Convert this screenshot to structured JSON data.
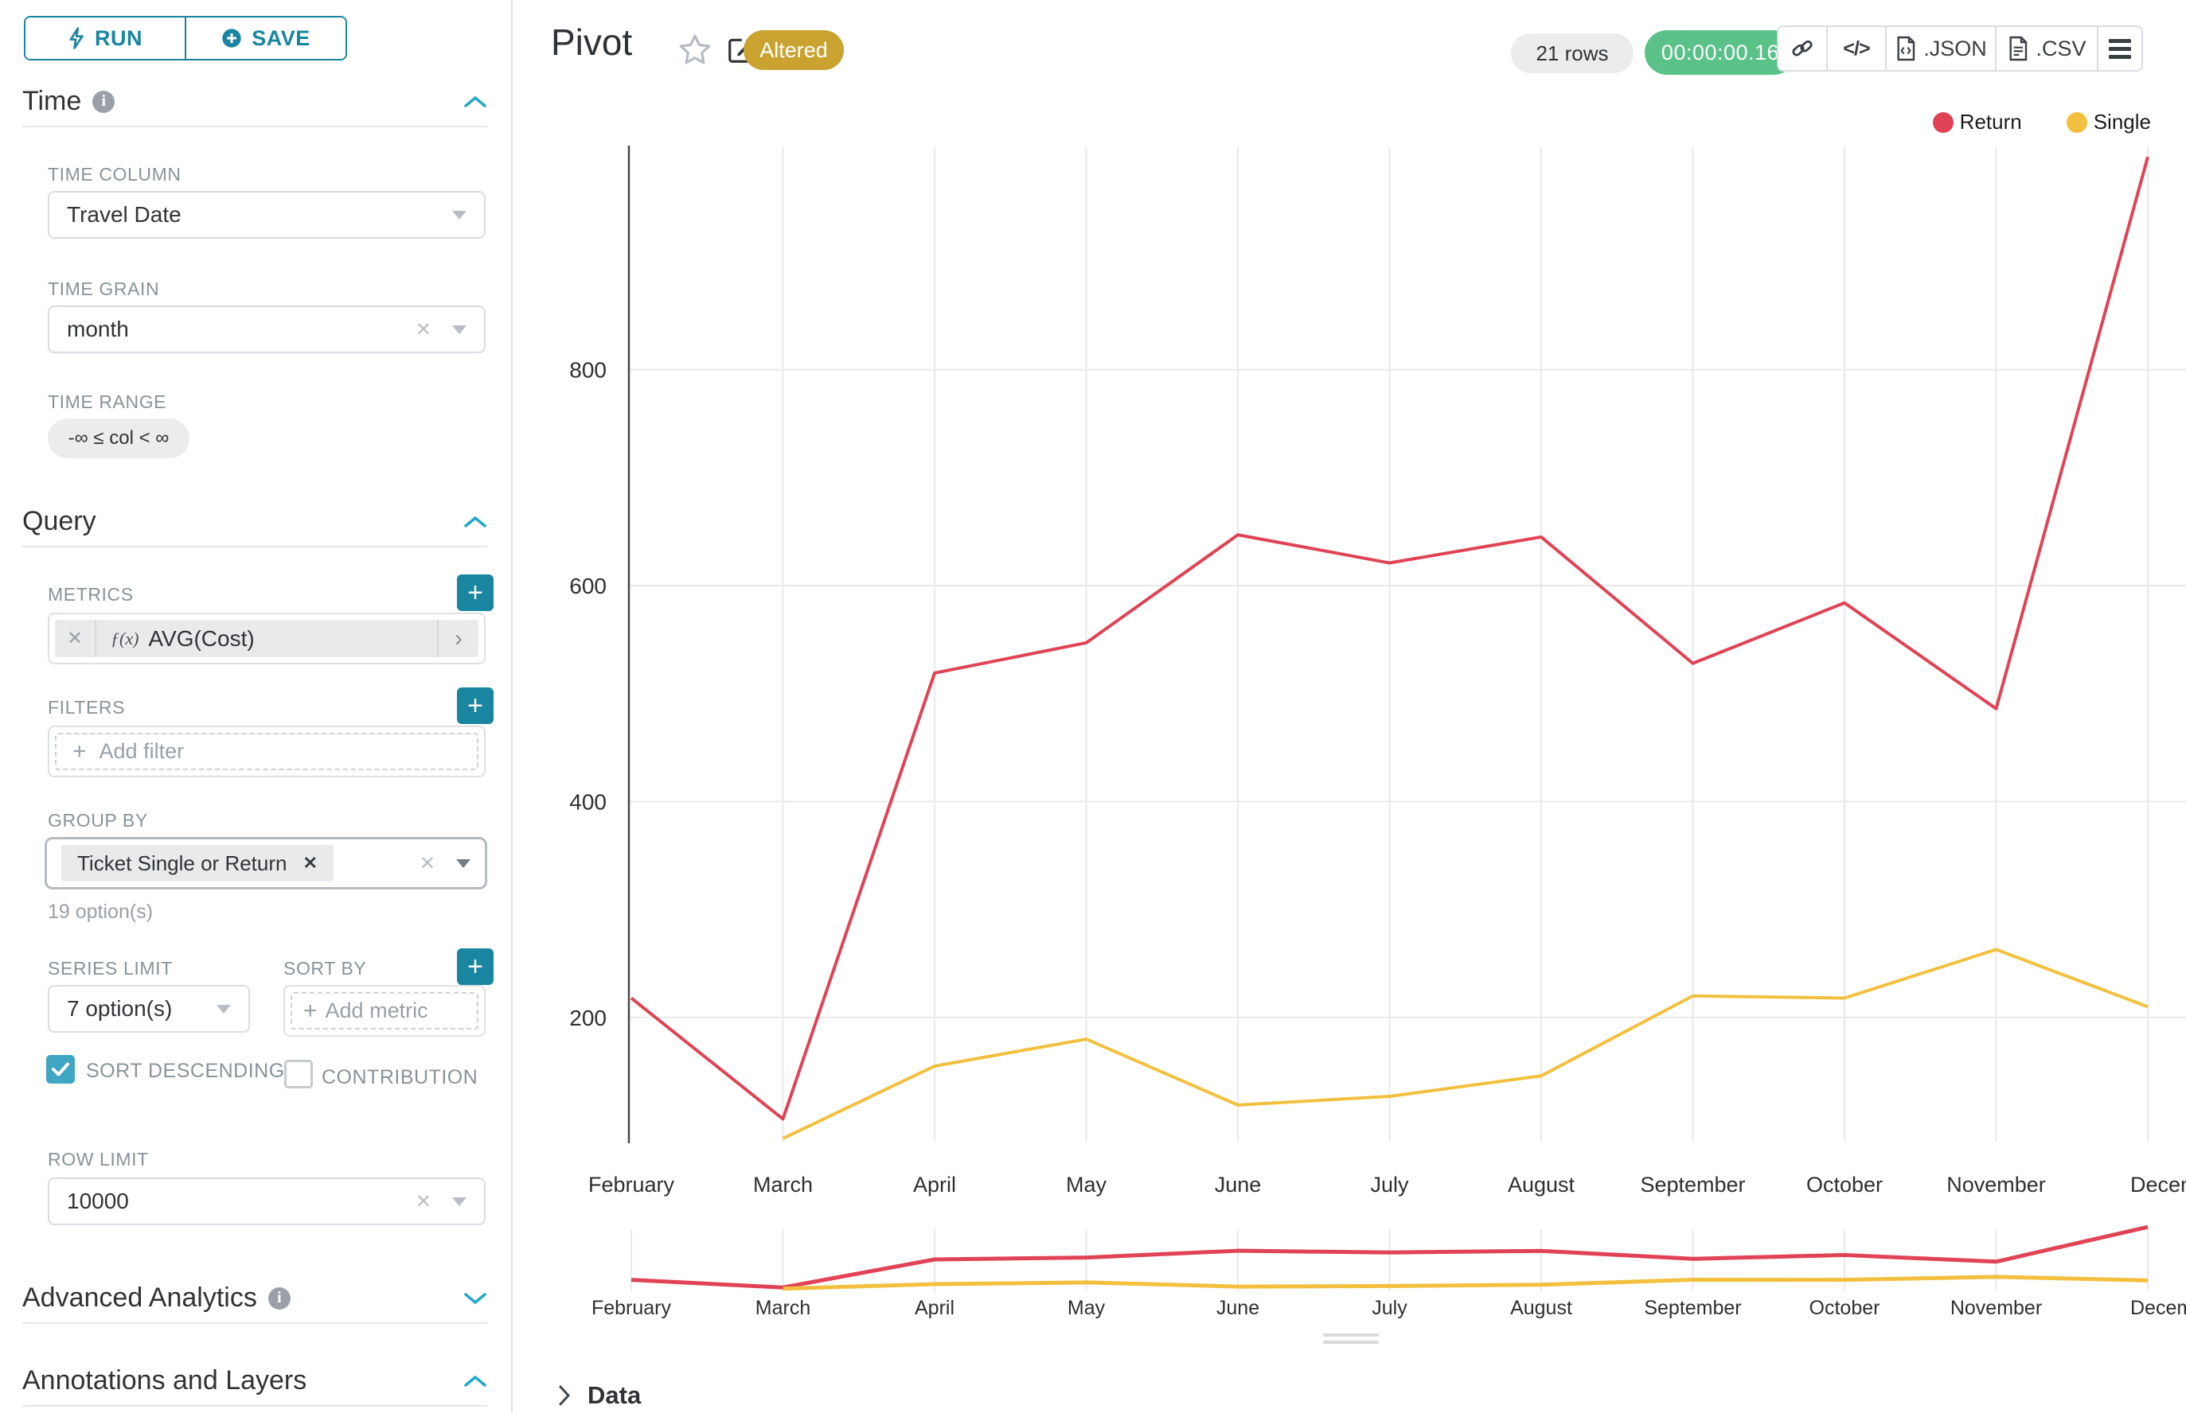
{
  "toolbar": {
    "run_label": "RUN",
    "save_label": "SAVE"
  },
  "sidebar": {
    "time": {
      "title": "Time",
      "column_label": "TIME COLUMN",
      "column_value": "Travel Date",
      "grain_label": "TIME GRAIN",
      "grain_value": "month",
      "range_label": "TIME RANGE",
      "range_value": "-∞ ≤ col < ∞"
    },
    "query": {
      "title": "Query",
      "metrics_label": "METRICS",
      "metric_fx": "ƒ(x)",
      "metric_value": "AVG(Cost)",
      "filters_label": "FILTERS",
      "add_filter": "Add filter",
      "group_by_label": "GROUP BY",
      "group_by_value": "Ticket Single or Return",
      "group_by_hint": "19 option(s)",
      "series_limit_label": "SERIES LIMIT",
      "series_limit_value": "7 option(s)",
      "sort_by_label": "SORT BY",
      "add_metric": "Add metric",
      "sort_descending_label": "SORT DESCENDING",
      "contribution_label": "CONTRIBUTION",
      "row_limit_label": "ROW LIMIT",
      "row_limit_value": "10000"
    },
    "advanced": {
      "title": "Advanced Analytics"
    },
    "annotations": {
      "title": "Annotations and Layers"
    }
  },
  "header": {
    "title": "Pivot",
    "altered": "Altered",
    "rows": "21 rows",
    "duration": "00:00:00.16",
    "code_glyph": "</>",
    "json_label": ".JSON",
    "csv_label": ".CSV"
  },
  "footer": {
    "data_label": "Data"
  },
  "chart_data": {
    "type": "line",
    "title": "Pivot",
    "categories": [
      "February",
      "March",
      "April",
      "May",
      "June",
      "July",
      "August",
      "September",
      "October",
      "November",
      "December"
    ],
    "series": [
      {
        "name": "Return",
        "color": "#e04355",
        "values": [
          218,
          106,
          519,
          547,
          647,
          621,
          645,
          528,
          584,
          486,
          997
        ]
      },
      {
        "name": "Single",
        "color": "#f2c03e",
        "values": [
          null,
          88,
          155,
          180,
          119,
          127,
          146,
          220,
          218,
          263,
          210
        ]
      }
    ],
    "yticks": [
      200,
      400,
      600,
      800
    ],
    "ylim": [
      85,
      1006
    ],
    "xlabel": "",
    "ylabel": "",
    "grid": true,
    "legend_position": "top-right",
    "has_mini_preview": true
  }
}
